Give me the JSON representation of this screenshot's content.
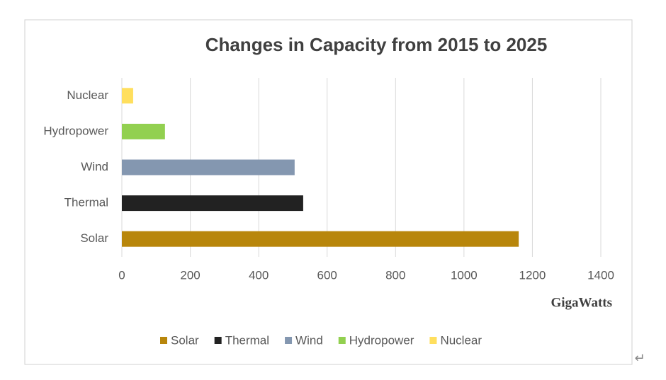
{
  "chart_data": {
    "type": "barh",
    "title": "Changes in Capacity from 2015 to 2025",
    "categories": [
      "Solar",
      "Thermal",
      "Wind",
      "Hydropower",
      "Nuclear"
    ],
    "values": [
      1160,
      530,
      505,
      126,
      33
    ],
    "colors": [
      "#b8860b",
      "#222222",
      "#8497b0",
      "#92d050",
      "#ffdf5e"
    ],
    "xlabel": "GigaWatts",
    "xlim": [
      0,
      1400
    ],
    "xticks": [
      0,
      200,
      400,
      600,
      800,
      1000,
      1200,
      1400
    ],
    "grid": true,
    "legend": "bottom"
  },
  "page_mark": "↵"
}
